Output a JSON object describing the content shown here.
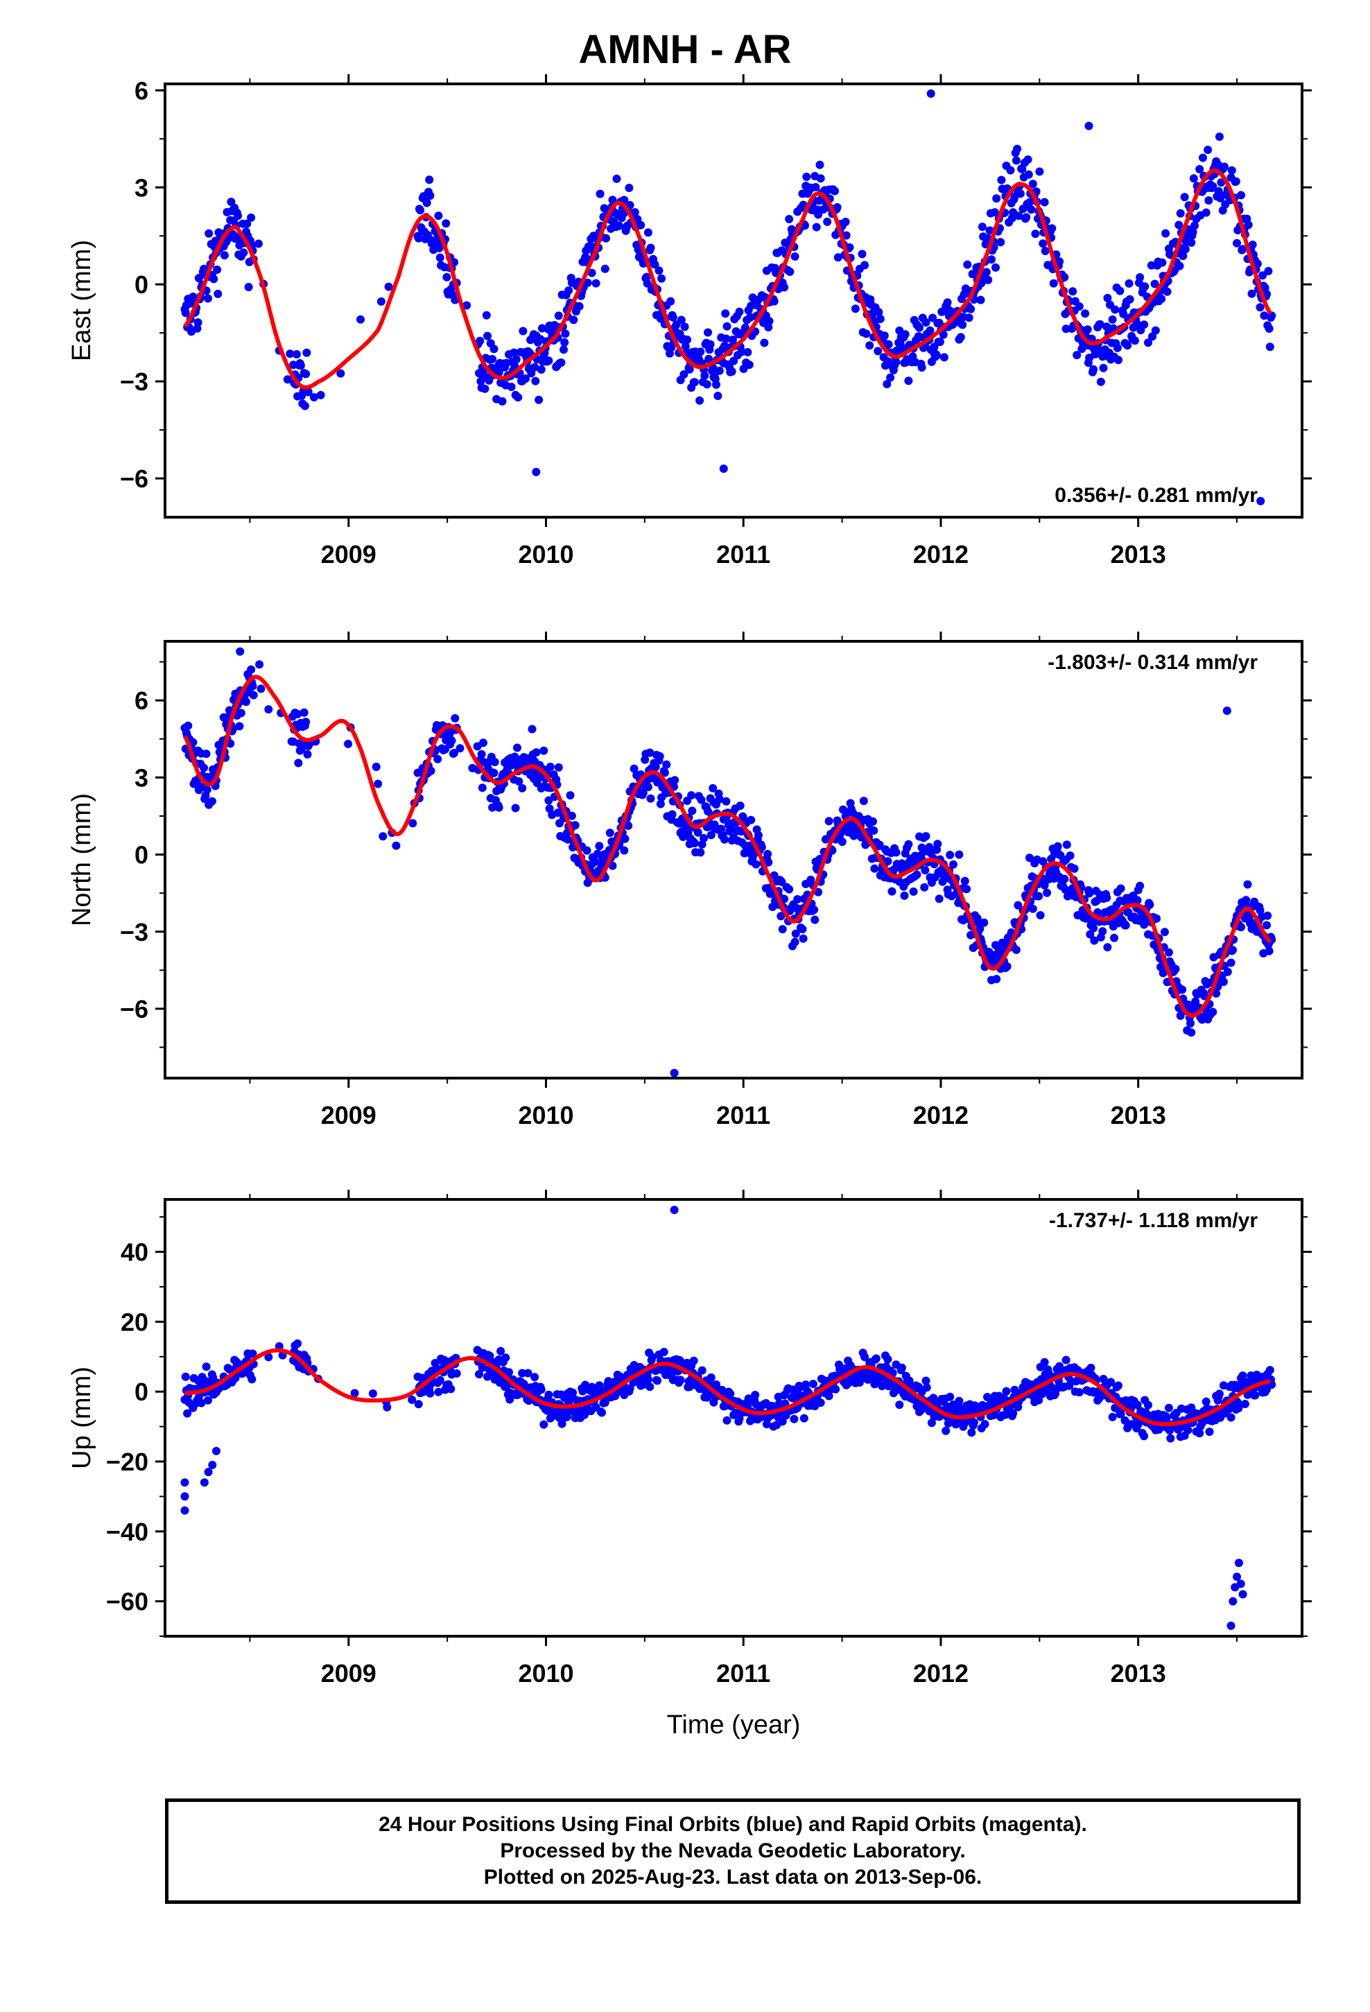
{
  "title": "AMNH - AR",
  "colors": {
    "points": "#0000ff",
    "fit": "#ff0000",
    "frame": "#000000"
  },
  "caption": {
    "line1": "24 Hour Positions Using Final Orbits (blue) and Rapid Orbits (magenta).",
    "line2": "Processed by the Nevada Geodetic Laboratory.",
    "line3": "Plotted on 2025-Aug-23. Last data on 2013-Sep-06."
  },
  "chart_data": [
    {
      "type": "scatter",
      "ylabel": "East (mm)",
      "xlabel": "",
      "xlim": [
        2008.07,
        2013.83
      ],
      "ylim": [
        -7.2,
        6.2
      ],
      "yticks": [
        -6,
        -3,
        0,
        3,
        6
      ],
      "xticks": [
        2009,
        2010,
        2011,
        2012,
        2013
      ],
      "rate": "0.356+/- 0.281 mm/yr",
      "rate_position": "bottom-right",
      "fit_curve": [
        [
          2008.17,
          -1.3
        ],
        [
          2008.25,
          -0.3
        ],
        [
          2008.33,
          1.0
        ],
        [
          2008.4,
          1.7
        ],
        [
          2008.45,
          1.6
        ],
        [
          2008.55,
          0.3
        ],
        [
          2008.65,
          -1.9
        ],
        [
          2008.75,
          -3.1
        ],
        [
          2008.85,
          -3.0
        ],
        [
          2009.0,
          -2.3
        ],
        [
          2009.15,
          -1.4
        ],
        [
          2009.25,
          0.2
        ],
        [
          2009.33,
          1.7
        ],
        [
          2009.4,
          2.1
        ],
        [
          2009.48,
          1.3
        ],
        [
          2009.58,
          -0.8
        ],
        [
          2009.68,
          -2.4
        ],
        [
          2009.78,
          -2.9
        ],
        [
          2009.9,
          -2.4
        ],
        [
          2010.05,
          -1.6
        ],
        [
          2010.15,
          -0.4
        ],
        [
          2010.25,
          1.0
        ],
        [
          2010.32,
          2.2
        ],
        [
          2010.38,
          2.5
        ],
        [
          2010.45,
          1.8
        ],
        [
          2010.55,
          0.0
        ],
        [
          2010.65,
          -1.7
        ],
        [
          2010.75,
          -2.5
        ],
        [
          2010.85,
          -2.4
        ],
        [
          2011.0,
          -1.7
        ],
        [
          2011.1,
          -0.8
        ],
        [
          2011.2,
          0.5
        ],
        [
          2011.3,
          2.0
        ],
        [
          2011.37,
          2.8
        ],
        [
          2011.45,
          2.3
        ],
        [
          2011.55,
          0.4
        ],
        [
          2011.65,
          -1.3
        ],
        [
          2011.75,
          -2.2
        ],
        [
          2011.85,
          -2.0
        ],
        [
          2012.0,
          -1.4
        ],
        [
          2012.15,
          -0.4
        ],
        [
          2012.25,
          1.2
        ],
        [
          2012.33,
          2.6
        ],
        [
          2012.4,
          3.1
        ],
        [
          2012.48,
          2.6
        ],
        [
          2012.58,
          0.6
        ],
        [
          2012.68,
          -1.1
        ],
        [
          2012.75,
          -1.8
        ],
        [
          2012.85,
          -1.6
        ],
        [
          2013.0,
          -0.9
        ],
        [
          2013.15,
          0.3
        ],
        [
          2013.25,
          2.0
        ],
        [
          2013.33,
          3.2
        ],
        [
          2013.4,
          3.5
        ],
        [
          2013.48,
          2.7
        ],
        [
          2013.58,
          0.6
        ],
        [
          2013.67,
          -0.9
        ]
      ],
      "seasonal_points": {
        "amplitude": 2.2,
        "offset": -0.4,
        "noise": 1.0,
        "gaps": [
          [
            2008.52,
            2008.72
          ],
          [
            2008.8,
            2009.35
          ],
          [
            2009.55,
            2009.65
          ]
        ],
        "outliers": [
          [
            2011.95,
            5.9
          ],
          [
            2012.75,
            4.9
          ],
          [
            2009.95,
            -5.8
          ],
          [
            2010.9,
            -5.7
          ],
          [
            2013.62,
            -6.7
          ]
        ]
      }
    },
    {
      "type": "scatter",
      "ylabel": "North (mm)",
      "xlabel": "",
      "xlim": [
        2008.07,
        2013.83
      ],
      "ylim": [
        -8.7,
        8.3
      ],
      "yticks": [
        -6,
        -3,
        0,
        3,
        6
      ],
      "xticks": [
        2009,
        2010,
        2011,
        2012,
        2013
      ],
      "rate": "-1.803+/- 0.314 mm/yr",
      "rate_position": "top-right",
      "fit_curve": [
        [
          2008.17,
          4.6
        ],
        [
          2008.25,
          3.0
        ],
        [
          2008.33,
          3.0
        ],
        [
          2008.42,
          5.6
        ],
        [
          2008.52,
          6.9
        ],
        [
          2008.62,
          6.2
        ],
        [
          2008.75,
          4.6
        ],
        [
          2008.85,
          4.6
        ],
        [
          2008.97,
          5.2
        ],
        [
          2009.05,
          4.3
        ],
        [
          2009.15,
          2.0
        ],
        [
          2009.25,
          0.8
        ],
        [
          2009.35,
          2.3
        ],
        [
          2009.45,
          4.6
        ],
        [
          2009.55,
          4.9
        ],
        [
          2009.65,
          3.6
        ],
        [
          2009.75,
          2.8
        ],
        [
          2009.85,
          3.2
        ],
        [
          2009.95,
          3.4
        ],
        [
          2010.05,
          2.5
        ],
        [
          2010.15,
          0.5
        ],
        [
          2010.25,
          -1.0
        ],
        [
          2010.35,
          0.3
        ],
        [
          2010.45,
          2.5
        ],
        [
          2010.55,
          3.2
        ],
        [
          2010.65,
          2.3
        ],
        [
          2010.75,
          1.1
        ],
        [
          2010.85,
          1.5
        ],
        [
          2010.95,
          1.5
        ],
        [
          2011.05,
          0.5
        ],
        [
          2011.15,
          -1.2
        ],
        [
          2011.25,
          -2.6
        ],
        [
          2011.35,
          -1.5
        ],
        [
          2011.45,
          0.6
        ],
        [
          2011.55,
          1.4
        ],
        [
          2011.65,
          0.4
        ],
        [
          2011.75,
          -0.8
        ],
        [
          2011.85,
          -0.6
        ],
        [
          2011.95,
          -0.2
        ],
        [
          2012.05,
          -0.7
        ],
        [
          2012.15,
          -2.5
        ],
        [
          2012.25,
          -4.4
        ],
        [
          2012.35,
          -3.6
        ],
        [
          2012.45,
          -1.6
        ],
        [
          2012.55,
          -0.4
        ],
        [
          2012.65,
          -0.7
        ],
        [
          2012.75,
          -2.2
        ],
        [
          2012.85,
          -2.5
        ],
        [
          2012.95,
          -2.0
        ],
        [
          2013.05,
          -2.3
        ],
        [
          2013.15,
          -4.5
        ],
        [
          2013.25,
          -6.2
        ],
        [
          2013.35,
          -5.7
        ],
        [
          2013.45,
          -3.6
        ],
        [
          2013.55,
          -2.1
        ],
        [
          2013.67,
          -3.4
        ]
      ],
      "seasonal_points": {
        "amplitude": 1.2,
        "offset": 0.0,
        "noise": 1.0,
        "gaps": [
          [
            2008.52,
            2008.72
          ],
          [
            2008.8,
            2009.35
          ],
          [
            2009.55,
            2009.65
          ]
        ],
        "outliers": [
          [
            2010.65,
            -8.5
          ],
          [
            2008.45,
            7.9
          ],
          [
            2013.45,
            5.6
          ]
        ]
      }
    },
    {
      "type": "scatter",
      "ylabel": "Up (mm)",
      "xlabel": "Time (year)",
      "xlim": [
        2008.07,
        2013.83
      ],
      "ylim": [
        -70,
        55
      ],
      "yticks": [
        -60,
        -40,
        -20,
        0,
        20,
        40
      ],
      "xticks": [
        2009,
        2010,
        2011,
        2012,
        2013
      ],
      "rate": "-1.737+/- 1.118 mm/yr",
      "rate_position": "top-right",
      "fit_curve": [
        [
          2008.17,
          -0.5
        ],
        [
          2008.3,
          1.0
        ],
        [
          2008.45,
          6.5
        ],
        [
          2008.6,
          11.5
        ],
        [
          2008.72,
          10.5
        ],
        [
          2008.85,
          3.5
        ],
        [
          2009.0,
          -1.5
        ],
        [
          2009.15,
          -2.5
        ],
        [
          2009.3,
          -1.0
        ],
        [
          2009.45,
          5.0
        ],
        [
          2009.6,
          9.5
        ],
        [
          2009.72,
          7.5
        ],
        [
          2009.85,
          1.5
        ],
        [
          2010.0,
          -3.5
        ],
        [
          2010.15,
          -4.0
        ],
        [
          2010.3,
          -1.0
        ],
        [
          2010.45,
          4.5
        ],
        [
          2010.6,
          8.0
        ],
        [
          2010.75,
          4.5
        ],
        [
          2010.9,
          -2.0
        ],
        [
          2011.05,
          -6.0
        ],
        [
          2011.2,
          -5.0
        ],
        [
          2011.35,
          -1.0
        ],
        [
          2011.5,
          4.0
        ],
        [
          2011.62,
          7.0
        ],
        [
          2011.75,
          4.0
        ],
        [
          2011.9,
          -2.0
        ],
        [
          2012.05,
          -7.0
        ],
        [
          2012.2,
          -6.5
        ],
        [
          2012.35,
          -3.0
        ],
        [
          2012.5,
          1.5
        ],
        [
          2012.65,
          5.0
        ],
        [
          2012.78,
          2.5
        ],
        [
          2012.92,
          -4.5
        ],
        [
          2013.08,
          -9.0
        ],
        [
          2013.25,
          -8.5
        ],
        [
          2013.4,
          -5.0
        ],
        [
          2013.55,
          0.5
        ],
        [
          2013.67,
          3.0
        ]
      ],
      "seasonal_points": {
        "amplitude": 7.5,
        "offset": -0.5,
        "noise": 4.5,
        "gaps": [
          [
            2008.52,
            2008.72
          ],
          [
            2008.8,
            2009.35
          ],
          [
            2009.55,
            2009.65
          ]
        ],
        "outliers": [
          [
            2010.65,
            52
          ],
          [
            2008.17,
            -34
          ],
          [
            2008.17,
            -30
          ],
          [
            2008.17,
            -26
          ],
          [
            2008.27,
            -26
          ],
          [
            2008.29,
            -23
          ],
          [
            2008.31,
            -21
          ],
          [
            2008.33,
            -17
          ],
          [
            2013.47,
            -67
          ],
          [
            2013.48,
            -60
          ],
          [
            2013.49,
            -56
          ],
          [
            2013.5,
            -53
          ],
          [
            2013.51,
            -49
          ],
          [
            2013.52,
            -55
          ],
          [
            2013.53,
            -58
          ]
        ]
      }
    }
  ]
}
